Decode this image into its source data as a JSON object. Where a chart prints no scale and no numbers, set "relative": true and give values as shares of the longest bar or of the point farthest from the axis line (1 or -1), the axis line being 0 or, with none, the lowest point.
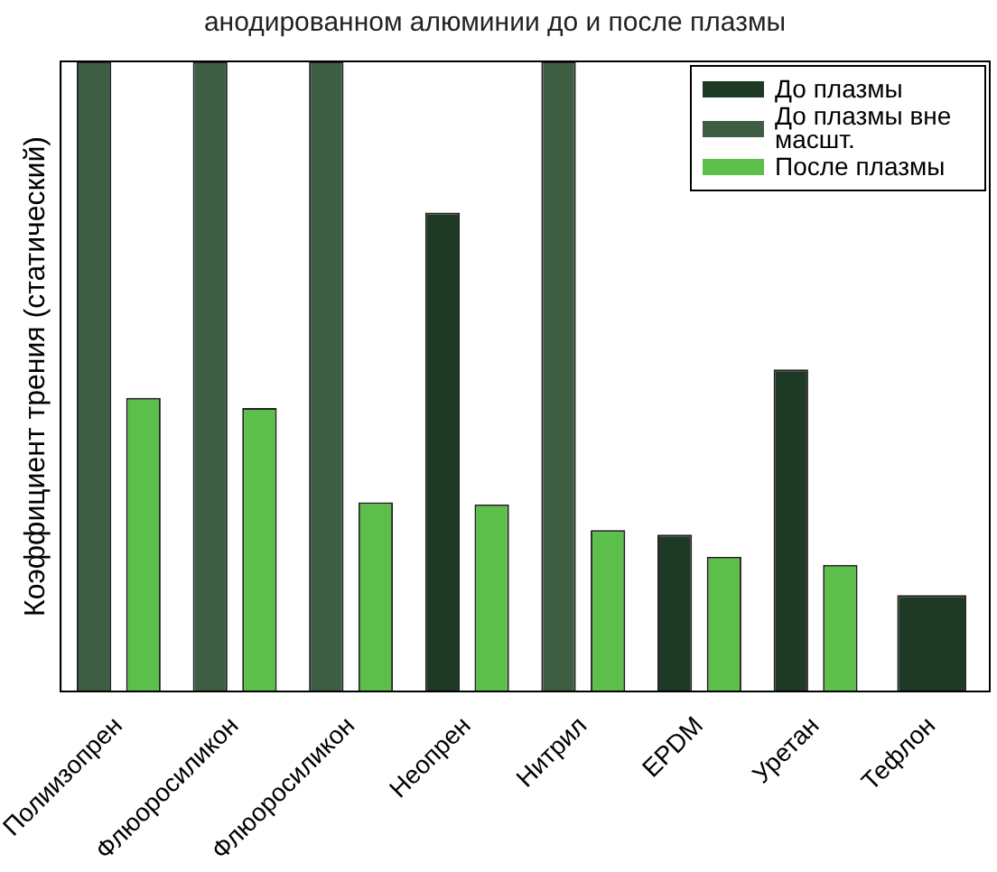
{
  "chart_data": {
    "type": "bar",
    "title": "анодированном алюминии до и после плазмы",
    "ylabel": "Коэффициент трения (статический)",
    "relative": true,
    "categories": [
      "Полиизопрен",
      "Флюоросиликон",
      "Флюоросиликон",
      "Неопрен",
      "Нитрил",
      "EPDM",
      "Уретан",
      "Тефлон"
    ],
    "series": [
      {
        "name": "До плазмы",
        "color": "#1e3a24",
        "values": [
          null,
          null,
          null,
          0.76,
          null,
          0.249,
          0.511,
          0.153
        ]
      },
      {
        "name": "До плазмы вне масшт.",
        "color": "#3d5e42",
        "values": [
          1,
          1,
          1,
          null,
          1,
          null,
          null,
          null
        ]
      },
      {
        "name": "После плазмы",
        "color": "#5cbf4a",
        "values": [
          0.466,
          0.45,
          0.3,
          0.297,
          0.256,
          0.214,
          0.201,
          null
        ]
      }
    ],
    "grid": false,
    "legend": "top right"
  }
}
